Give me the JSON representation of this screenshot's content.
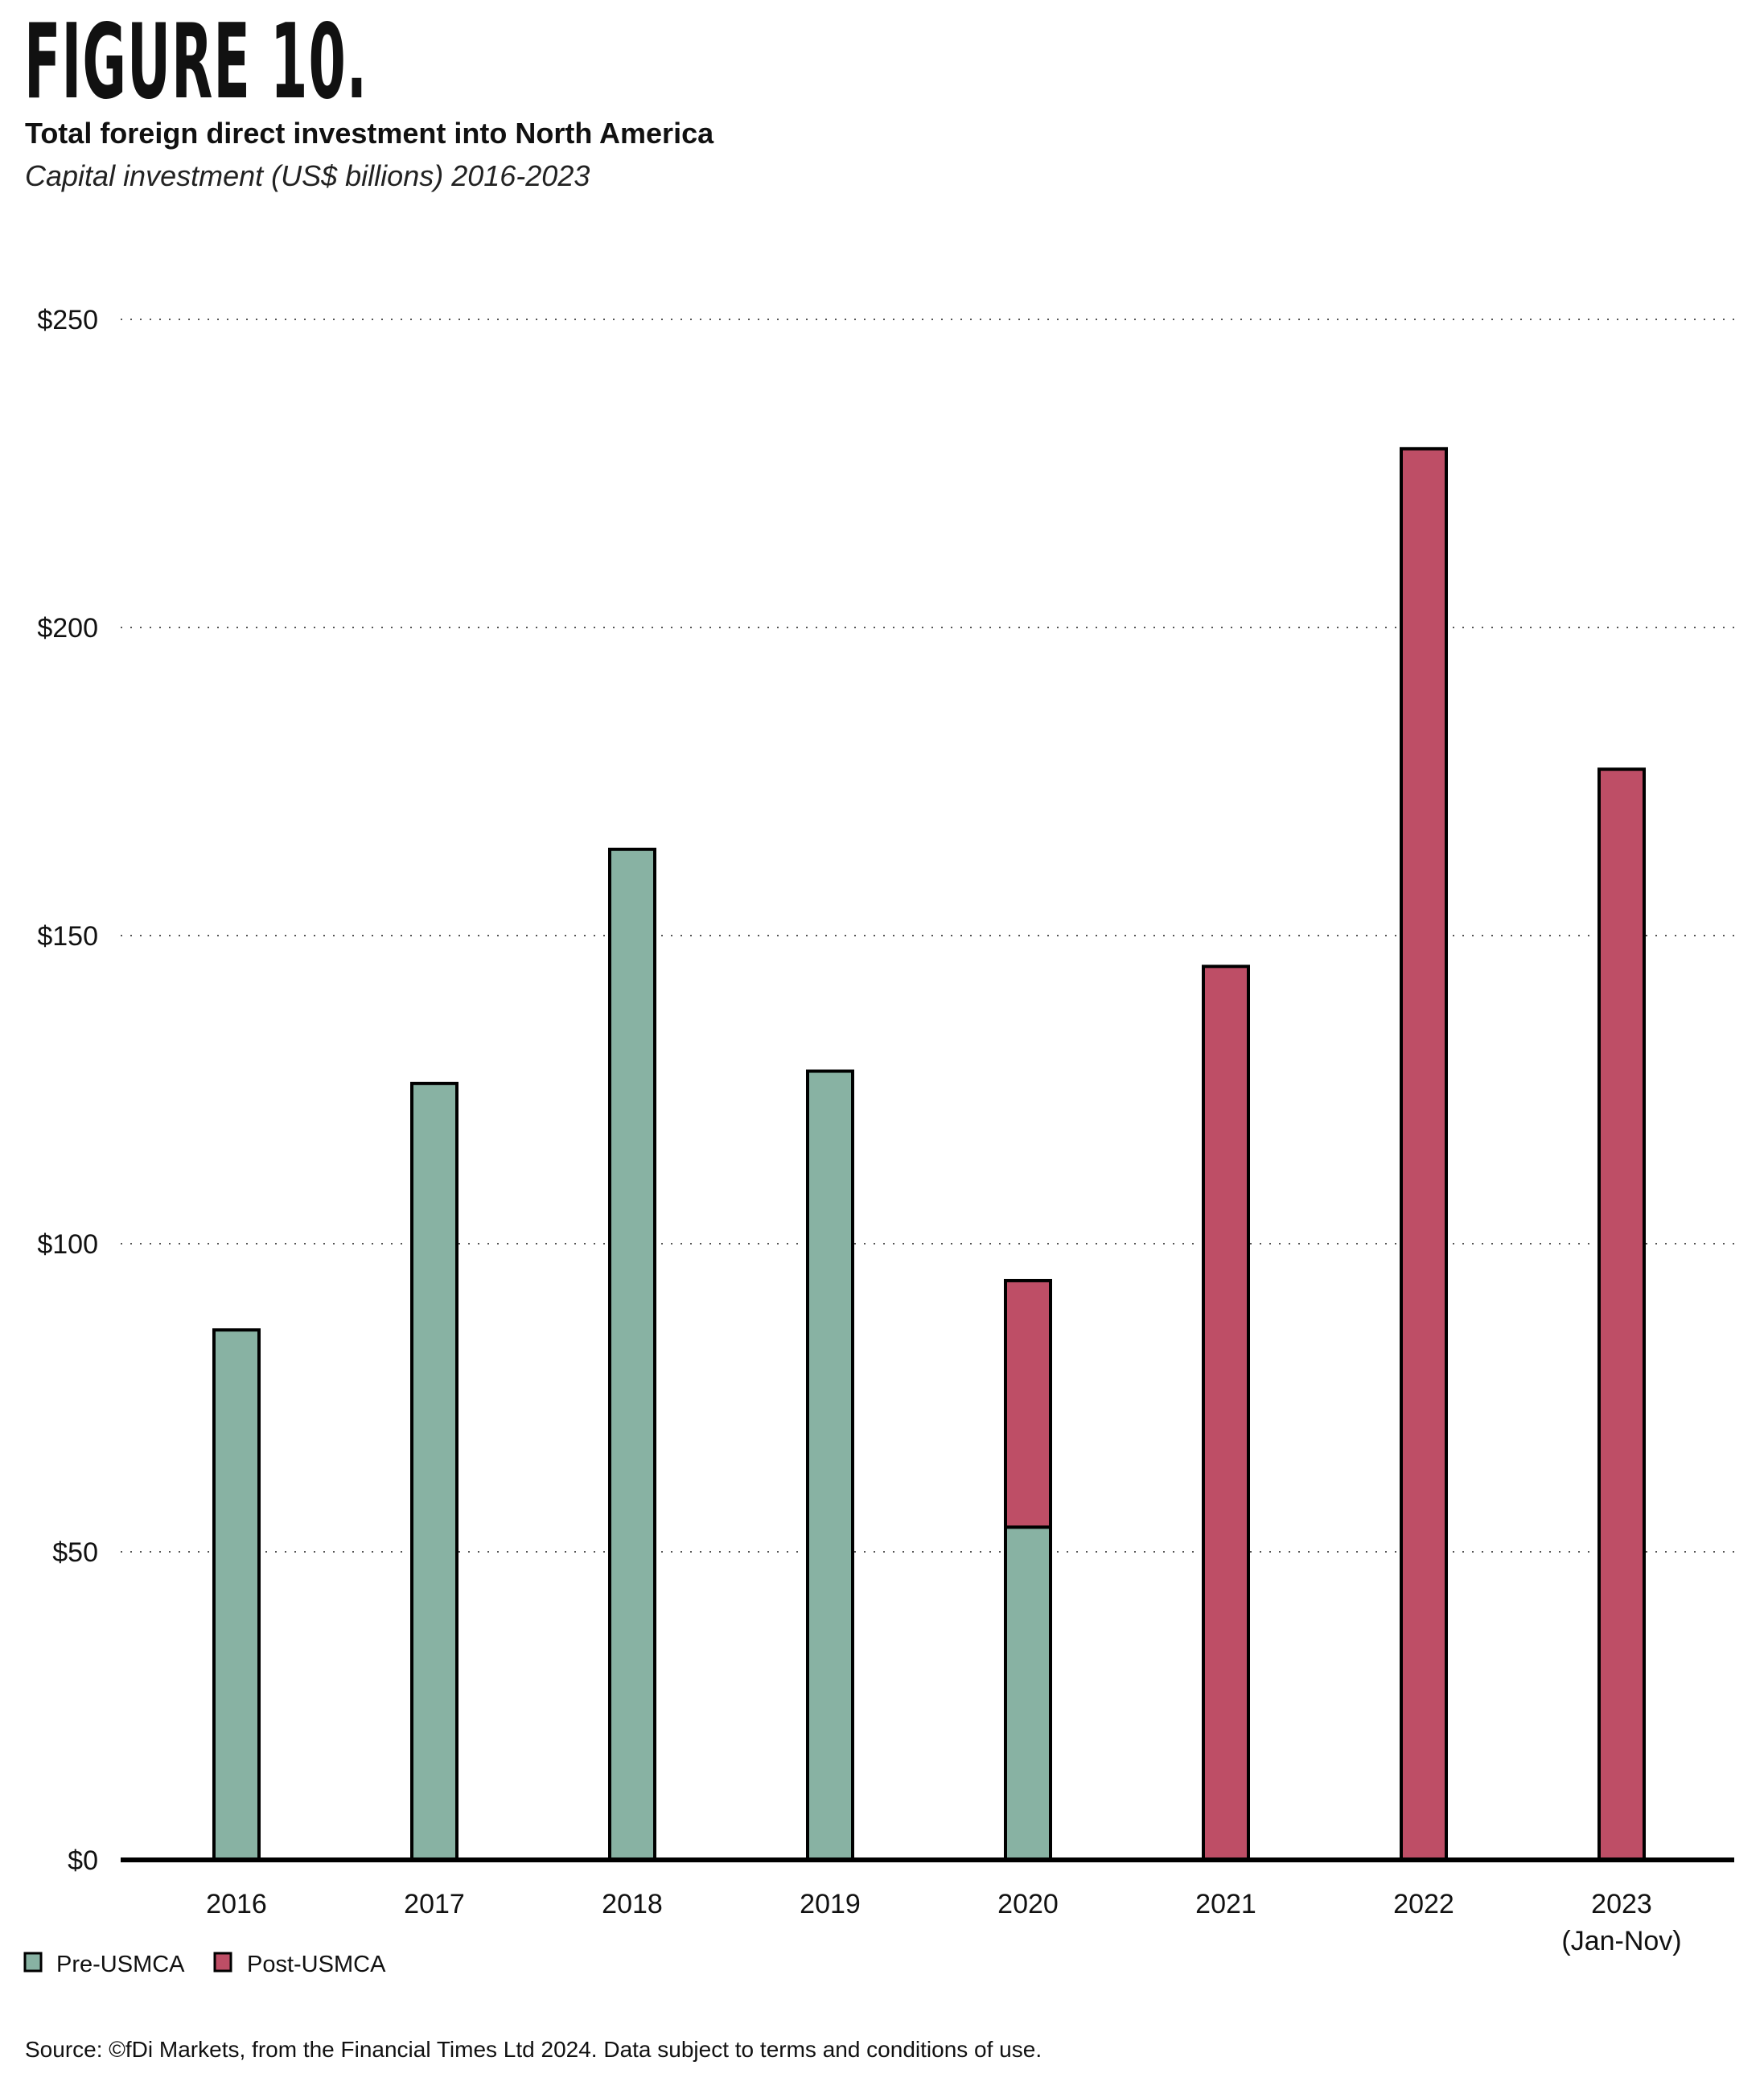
{
  "header": {
    "figure_label": "FIGURE 10.",
    "title": "Total foreign direct investment into North America",
    "subtitle": "Capital investment (US$ billions) 2016-2023"
  },
  "chart_data": {
    "type": "bar",
    "stacked": true,
    "title": "Total foreign direct investment into North America",
    "subtitle": "Capital investment (US$ billions) 2016-2023",
    "xlabel": "",
    "ylabel": "",
    "categories": [
      "2016",
      "2017",
      "2018",
      "2019",
      "2020",
      "2021",
      "2022",
      "2023"
    ],
    "category_sublabels": [
      "",
      "",
      "",
      "",
      "",
      "",
      "",
      "(Jan-Nov)"
    ],
    "series": [
      {
        "name": "Pre-USMCA",
        "color": "#88b2a3",
        "values": [
          86,
          126,
          164,
          128,
          54,
          0,
          0,
          0
        ]
      },
      {
        "name": "Post-USMCA",
        "color": "#be4e66",
        "values": [
          0,
          0,
          0,
          0,
          40,
          145,
          229,
          177
        ]
      }
    ],
    "ylim": [
      0,
      250
    ],
    "yticks": [
      0,
      50,
      100,
      150,
      200,
      250
    ],
    "ytick_labels": [
      "$0",
      "$50",
      "$100",
      "$150",
      "$200",
      "$250"
    ],
    "grid": "horizontal dotted",
    "legend_position": "bottom-left"
  },
  "footer": {
    "source": "Source: ©fDi Markets, from the Financial Times Ltd 2024. Data subject to terms and conditions of use."
  }
}
